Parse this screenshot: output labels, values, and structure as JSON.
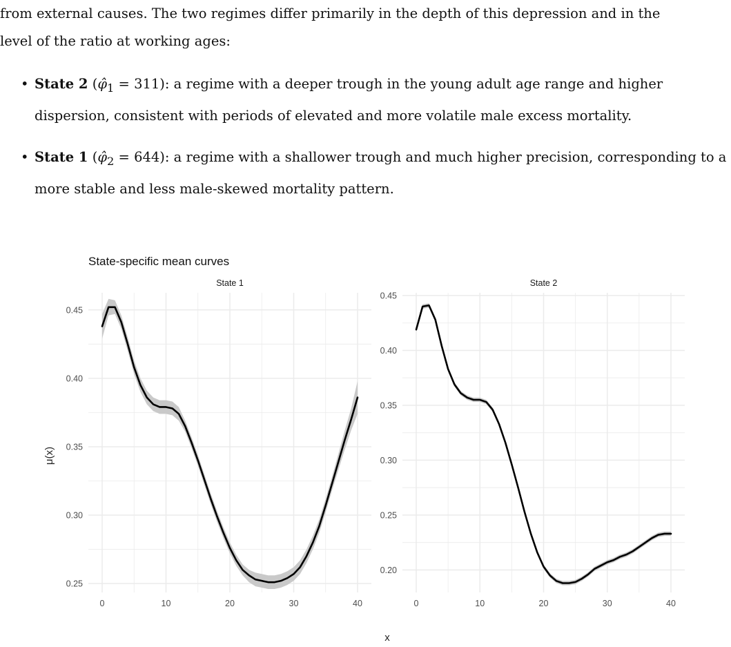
{
  "text": {
    "line1": "from external causes. The two regimes differ primarily in the depth of this depression and in the",
    "line2": "level of the ratio at working ages:",
    "bullets": [
      {
        "state": "State 2",
        "phi_sub": "1",
        "phi_value": "311",
        "desc": ": a regime with a deeper trough in the young adult age range and higher dispersion, consistent with periods of elevated and more volatile male excess mortality."
      },
      {
        "state": "State 1",
        "phi_sub": "2",
        "phi_value": "644",
        "desc": ": a regime with a shallower trough and much higher precision, corresponding to a more stable and less male-skewed mortality pattern."
      }
    ]
  },
  "figure": {
    "title": "State-specific mean curves",
    "ylabel": "μ(x)",
    "xlabel": "x",
    "panel_bg": "#ffffff",
    "grid_color": "#ebebeb",
    "curve_color": "#000000",
    "band_color": "#c9c9c9"
  },
  "chart_data": [
    {
      "type": "line",
      "title": "State 1",
      "xlabel": "x",
      "ylabel": "μ(x)",
      "xlim": [
        0,
        40
      ],
      "ylim": [
        0.2435,
        0.4625
      ],
      "xticks": [
        0,
        10,
        20,
        30,
        40
      ],
      "yticks": [
        0.25,
        0.3,
        0.35,
        0.4,
        0.45
      ],
      "ytick_labels": [
        "0.25",
        "0.30",
        "0.35",
        "0.40",
        "0.45"
      ],
      "grid": true,
      "x": [
        0,
        1,
        2,
        3,
        4,
        5,
        6,
        7,
        8,
        9,
        10,
        11,
        12,
        13,
        14,
        15,
        16,
        17,
        18,
        19,
        20,
        21,
        22,
        23,
        24,
        25,
        26,
        27,
        28,
        29,
        30,
        31,
        32,
        33,
        34,
        35,
        36,
        37,
        38,
        39,
        40
      ],
      "series": [
        {
          "values": [
            0.438,
            0.452,
            0.452,
            0.441,
            0.425,
            0.408,
            0.395,
            0.386,
            0.381,
            0.379,
            0.379,
            0.378,
            0.374,
            0.365,
            0.353,
            0.34,
            0.326,
            0.312,
            0.299,
            0.287,
            0.276,
            0.267,
            0.26,
            0.256,
            0.253,
            0.252,
            0.251,
            0.251,
            0.252,
            0.254,
            0.257,
            0.262,
            0.27,
            0.28,
            0.292,
            0.307,
            0.323,
            0.339,
            0.355,
            0.37,
            0.386
          ],
          "band_lower": [
            0.429,
            0.446,
            0.447,
            0.436,
            0.42,
            0.403,
            0.39,
            0.381,
            0.376,
            0.374,
            0.374,
            0.373,
            0.369,
            0.361,
            0.349,
            0.336,
            0.322,
            0.308,
            0.295,
            0.283,
            0.272,
            0.263,
            0.256,
            0.251,
            0.248,
            0.247,
            0.246,
            0.246,
            0.247,
            0.249,
            0.252,
            0.257,
            0.265,
            0.275,
            0.287,
            0.302,
            0.318,
            0.333,
            0.348,
            0.362,
            0.374
          ],
          "band_upper": [
            0.447,
            0.458,
            0.457,
            0.446,
            0.43,
            0.413,
            0.4,
            0.391,
            0.386,
            0.384,
            0.384,
            0.383,
            0.379,
            0.369,
            0.357,
            0.344,
            0.33,
            0.316,
            0.303,
            0.291,
            0.28,
            0.271,
            0.264,
            0.26,
            0.258,
            0.257,
            0.256,
            0.256,
            0.257,
            0.259,
            0.262,
            0.267,
            0.275,
            0.285,
            0.297,
            0.312,
            0.328,
            0.345,
            0.362,
            0.378,
            0.398
          ]
        }
      ]
    },
    {
      "type": "line",
      "title": "State 2",
      "xlabel": "x",
      "ylabel": "μ(x)",
      "xlim": [
        0,
        40
      ],
      "ylim": [
        0.1795,
        0.4525
      ],
      "xticks": [
        0,
        10,
        20,
        30,
        40
      ],
      "yticks": [
        0.2,
        0.25,
        0.3,
        0.35,
        0.4,
        0.45
      ],
      "ytick_labels": [
        "0.20",
        "0.25",
        "0.30",
        "0.35",
        "0.40",
        "0.45"
      ],
      "grid": true,
      "x": [
        0,
        1,
        2,
        3,
        4,
        5,
        6,
        7,
        8,
        9,
        10,
        11,
        12,
        13,
        14,
        15,
        16,
        17,
        18,
        19,
        20,
        21,
        22,
        23,
        24,
        25,
        26,
        27,
        28,
        29,
        30,
        31,
        32,
        33,
        34,
        35,
        36,
        37,
        38,
        39,
        40
      ],
      "series": [
        {
          "values": [
            0.419,
            0.44,
            0.441,
            0.428,
            0.404,
            0.383,
            0.369,
            0.361,
            0.357,
            0.355,
            0.355,
            0.353,
            0.346,
            0.333,
            0.316,
            0.296,
            0.275,
            0.253,
            0.233,
            0.216,
            0.203,
            0.195,
            0.19,
            0.188,
            0.188,
            0.189,
            0.192,
            0.196,
            0.201,
            0.204,
            0.207,
            0.209,
            0.212,
            0.214,
            0.217,
            0.221,
            0.225,
            0.229,
            0.232,
            0.233,
            0.233
          ],
          "band_lower": [
            0.417,
            0.438,
            0.439,
            0.426,
            0.402,
            0.381,
            0.367,
            0.359,
            0.355,
            0.353,
            0.353,
            0.351,
            0.344,
            0.331,
            0.314,
            0.294,
            0.273,
            0.251,
            0.231,
            0.214,
            0.201,
            0.193,
            0.188,
            0.186,
            0.186,
            0.187,
            0.19,
            0.194,
            0.199,
            0.202,
            0.205,
            0.207,
            0.21,
            0.212,
            0.215,
            0.219,
            0.223,
            0.227,
            0.23,
            0.231,
            0.231
          ],
          "band_upper": [
            0.421,
            0.442,
            0.443,
            0.43,
            0.406,
            0.385,
            0.371,
            0.363,
            0.359,
            0.357,
            0.357,
            0.355,
            0.348,
            0.335,
            0.318,
            0.298,
            0.277,
            0.255,
            0.235,
            0.218,
            0.205,
            0.197,
            0.192,
            0.19,
            0.19,
            0.191,
            0.194,
            0.198,
            0.203,
            0.206,
            0.209,
            0.211,
            0.214,
            0.216,
            0.219,
            0.223,
            0.227,
            0.231,
            0.234,
            0.235,
            0.235
          ]
        }
      ]
    }
  ]
}
